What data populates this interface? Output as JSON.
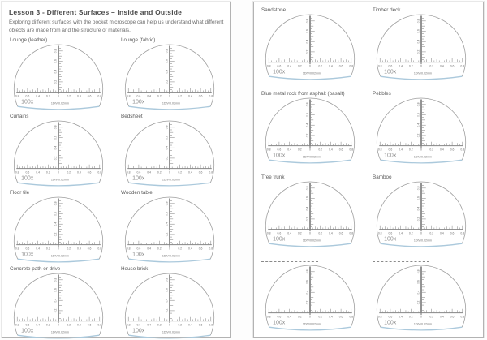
{
  "page_left": {
    "title": "Lesson 3 - Different Surfaces – Inside and Outside",
    "subtitle": "Exploring different surfaces with the pocket microscope can help us understand what different objects are made from and the structure of materials.",
    "cells": [
      {
        "label": "Lounge (leather)"
      },
      {
        "label": "Lounge (fabric)"
      },
      {
        "label": "Curtains"
      },
      {
        "label": "Bedsheet"
      },
      {
        "label": "Floor tile"
      },
      {
        "label": "Wooden table"
      },
      {
        "label": "Concrete path or drive"
      },
      {
        "label": "House brick"
      }
    ]
  },
  "page_right": {
    "cells": [
      {
        "label": "Sandstone"
      },
      {
        "label": "Timber deck"
      },
      {
        "label": "Blue metal rock from asphalt (basalt)"
      },
      {
        "label": "Pebbles"
      },
      {
        "label": "Tree trunk"
      },
      {
        "label": "Bamboo"
      },
      {
        "label": "",
        "blank": true
      },
      {
        "label": "",
        "blank": true
      }
    ]
  },
  "microscope": {
    "magnification": "100x",
    "division_label": "1DIV/0.02mm",
    "h_scale": [
      "0.8",
      "0.6",
      "0.4",
      "0.2",
      "0",
      "0.2",
      "0.4",
      "0.6",
      "0.8"
    ],
    "v_scale": [
      "0.2",
      "0.4",
      "0.6",
      "0.8"
    ],
    "colors": {
      "outline": "#9c9c9c",
      "ruler": "#858585",
      "glass_tint": "#abc9dc",
      "scale_text": "#6f6f6f",
      "magnification_text": "#8d8d8d"
    }
  }
}
